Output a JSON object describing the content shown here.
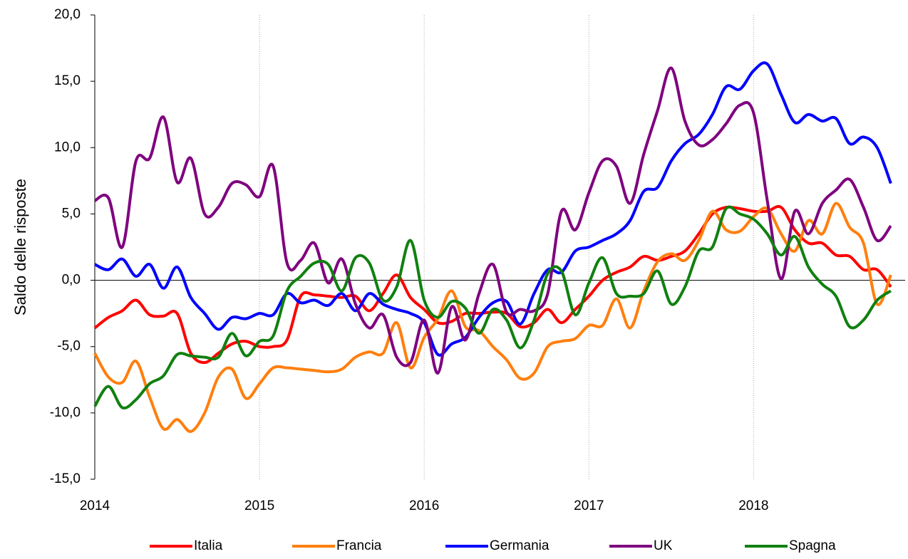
{
  "chart_data": {
    "type": "line",
    "ylabel": "Saldo delle risposte",
    "x": [
      2014,
      2014.083,
      2014.167,
      2014.25,
      2014.333,
      2014.417,
      2014.5,
      2014.583,
      2014.667,
      2014.75,
      2014.833,
      2014.917,
      2015,
      2015.083,
      2015.167,
      2015.25,
      2015.333,
      2015.417,
      2015.5,
      2015.583,
      2015.667,
      2015.75,
      2015.833,
      2015.917,
      2016,
      2016.083,
      2016.167,
      2016.25,
      2016.333,
      2016.417,
      2016.5,
      2016.583,
      2016.667,
      2016.75,
      2016.833,
      2016.917,
      2017,
      2017.083,
      2017.167,
      2017.25,
      2017.333,
      2017.417,
      2017.5,
      2017.583,
      2017.667,
      2017.75,
      2017.833,
      2017.917,
      2018,
      2018.083,
      2018.167,
      2018.25,
      2018.333,
      2018.417,
      2018.5,
      2018.583,
      2018.667,
      2018.75,
      2018.833
    ],
    "xlim": [
      2014,
      2018.92
    ],
    "xticks": [
      2014,
      2015,
      2016,
      2017,
      2018
    ],
    "ylim": [
      -15,
      20
    ],
    "yticks": [
      {
        "value": -15,
        "label": "-15,0"
      },
      {
        "value": -10,
        "label": "-10,0"
      },
      {
        "value": -5,
        "label": "-5,0"
      },
      {
        "value": 0,
        "label": "0,0"
      },
      {
        "value": 5,
        "label": "5,0"
      },
      {
        "value": 10,
        "label": "10,0"
      },
      {
        "value": 15,
        "label": "15,0"
      },
      {
        "value": 20,
        "label": "20,0"
      }
    ],
    "xgrid": true,
    "legend": "bottom",
    "series": [
      {
        "name": "Italia",
        "color": "#ff0000",
        "values": [
          -3.6,
          -2.8,
          -2.3,
          -1.5,
          -2.6,
          -2.7,
          -2.5,
          -5.5,
          -6.2,
          -5.5,
          -4.8,
          -4.6,
          -5.0,
          -5.0,
          -4.5,
          -1.2,
          -1.1,
          -1.2,
          -1.3,
          -1.2,
          -2.3,
          -1.0,
          0.4,
          -1.3,
          -2.2,
          -3.2,
          -3.1,
          -2.5,
          -2.5,
          -2.4,
          -2.5,
          -3.5,
          -3.2,
          -2.2,
          -3.2,
          -2.2,
          -1.2,
          0.0,
          0.6,
          1.0,
          1.8,
          1.5,
          1.8,
          2.2,
          3.5,
          5.0,
          5.5,
          5.4,
          5.2,
          5.2,
          5.5,
          3.8,
          2.8,
          2.8,
          1.9,
          1.8,
          0.8,
          0.8,
          -0.5
        ]
      },
      {
        "name": "Francia",
        "color": "#ff7f0e",
        "values": [
          -5.5,
          -7.3,
          -7.7,
          -6.1,
          -8.8,
          -11.2,
          -10.5,
          -11.4,
          -10.0,
          -7.3,
          -6.7,
          -8.9,
          -7.8,
          -6.6,
          -6.6,
          -6.7,
          -6.8,
          -6.9,
          -6.7,
          -5.8,
          -5.4,
          -5.5,
          -3.2,
          -6.6,
          -4.3,
          -2.9,
          -0.8,
          -3.5,
          -3.8,
          -5.0,
          -6.0,
          -7.4,
          -7.0,
          -5.0,
          -4.6,
          -4.4,
          -3.4,
          -3.4,
          -1.4,
          -3.6,
          -0.8,
          1.4,
          2.0,
          1.5,
          3.0,
          5.2,
          3.8,
          3.7,
          4.8,
          5.4,
          3.5,
          2.2,
          4.5,
          3.5,
          5.8,
          4.0,
          2.8,
          -1.8,
          0.4
        ]
      },
      {
        "name": "Germania",
        "color": "#0000ff",
        "values": [
          1.2,
          0.8,
          1.6,
          0.3,
          1.2,
          -0.6,
          1.0,
          -1.3,
          -2.5,
          -3.7,
          -2.8,
          -2.9,
          -2.5,
          -2.6,
          -1.0,
          -1.7,
          -1.5,
          -1.9,
          -1.0,
          -2.3,
          -1.0,
          -1.8,
          -2.2,
          -2.5,
          -3.2,
          -5.6,
          -4.8,
          -4.3,
          -2.8,
          -1.7,
          -1.6,
          -3.3,
          -1.0,
          0.8,
          0.6,
          2.2,
          2.5,
          3.0,
          3.5,
          4.5,
          6.7,
          7.0,
          9.0,
          10.3,
          11.0,
          12.5,
          14.6,
          14.4,
          15.8,
          16.3,
          14.0,
          11.9,
          12.5,
          12.0,
          12.2,
          10.3,
          10.8,
          10.0,
          7.3
        ]
      },
      {
        "name": "UK",
        "color": "#7f007f",
        "values": [
          6.0,
          6.2,
          2.5,
          9.0,
          9.2,
          12.3,
          7.4,
          9.2,
          5.0,
          5.5,
          7.3,
          7.2,
          6.3,
          8.6,
          1.3,
          1.5,
          2.8,
          -0.2,
          1.6,
          -1.8,
          -3.6,
          -2.6,
          -5.8,
          -6.2,
          -3.0,
          -7.0,
          -2.0,
          -4.5,
          -1.0,
          1.2,
          -2.4,
          -2.2,
          -2.3,
          -1.0,
          5.2,
          3.8,
          6.6,
          9.0,
          8.6,
          5.8,
          9.5,
          12.8,
          16.0,
          12.0,
          10.2,
          10.6,
          11.8,
          13.2,
          12.6,
          6.0,
          0.1,
          5.2,
          3.5,
          5.8,
          6.8,
          7.6,
          5.5,
          3.0,
          4.1
        ]
      },
      {
        "name": "Spagna",
        "color": "#108010",
        "values": [
          -9.5,
          -8.0,
          -9.6,
          -9.0,
          -7.8,
          -7.2,
          -5.6,
          -5.7,
          -5.8,
          -5.8,
          -4.0,
          -5.7,
          -4.6,
          -4.2,
          -0.8,
          0.3,
          1.3,
          1.2,
          -0.8,
          1.7,
          1.3,
          -1.5,
          -0.5,
          3.0,
          -1.5,
          -2.8,
          -1.6,
          -2.1,
          -4.0,
          -2.2,
          -3.0,
          -5.1,
          -3.0,
          0.5,
          0.7,
          -2.6,
          -0.2,
          1.7,
          -1.0,
          -1.2,
          -1.0,
          0.7,
          -1.8,
          -0.5,
          2.2,
          2.5,
          5.4,
          5.0,
          4.6,
          3.5,
          1.9,
          3.3,
          1.0,
          -0.3,
          -1.2,
          -3.5,
          -3.0,
          -1.5,
          -0.8
        ]
      }
    ]
  }
}
